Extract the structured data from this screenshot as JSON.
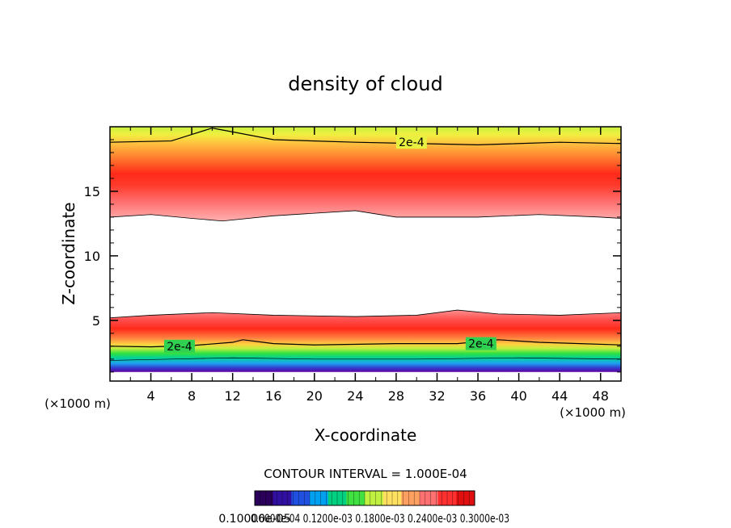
{
  "chart_data": {
    "type": "heatmap",
    "title": "density of cloud",
    "xlabel": "X-coordinate",
    "ylabel": "Z-coordinate",
    "x_unit_left": "(×1000 m)",
    "x_unit_right": "(×1000 m)",
    "xlim": [
      0,
      50
    ],
    "ylim": [
      0.3,
      20
    ],
    "x_ticks": [
      4,
      8,
      12,
      16,
      20,
      24,
      28,
      32,
      36,
      40,
      44,
      48
    ],
    "y_ticks": [
      5,
      10,
      15
    ],
    "contour_interval_text": "CONTOUR INTERVAL = 1.000E-04",
    "contour_labels": [
      {
        "text": "2e-4",
        "x": 29.5,
        "y": 18.8
      },
      {
        "text": "2e-4",
        "x": 6.8,
        "y": 3.0
      },
      {
        "text": "2e-4",
        "x": 36.3,
        "y": 3.2
      }
    ],
    "layers": [
      {
        "name": "upper",
        "z_bottom_profile": [
          [
            0,
            13.0
          ],
          [
            4,
            13.2
          ],
          [
            8,
            12.9
          ],
          [
            11,
            12.7
          ],
          [
            16,
            13.1
          ],
          [
            24,
            13.5
          ],
          [
            28,
            13.0
          ],
          [
            36,
            13.0
          ],
          [
            42,
            13.2
          ],
          [
            48,
            13.0
          ],
          [
            50,
            12.9
          ]
        ],
        "z_top": 20,
        "peak_z": 15.3
      },
      {
        "name": "lower",
        "z_top_profile": [
          [
            0,
            5.2
          ],
          [
            4,
            5.4
          ],
          [
            10,
            5.6
          ],
          [
            16,
            5.4
          ],
          [
            24,
            5.3
          ],
          [
            30,
            5.4
          ],
          [
            34,
            5.8
          ],
          [
            38,
            5.5
          ],
          [
            44,
            5.4
          ],
          [
            50,
            5.6
          ]
        ],
        "z_bottom": 1.0,
        "peak_z": 4.3
      }
    ],
    "colorbar": {
      "colors": [
        "#2a005a",
        "#3010a0",
        "#2050e0",
        "#00a0f0",
        "#00d080",
        "#40e040",
        "#c0f040",
        "#ffe060",
        "#ffa060",
        "#ff7070",
        "#ff3030",
        "#e01010"
      ],
      "tick_text": "0.10000e-05",
      "tick_text_overlap": "0.6000e-04 0.1200e-03 0.1800e-03 0.2400e-03 0.3000e-03"
    },
    "grid": false
  }
}
